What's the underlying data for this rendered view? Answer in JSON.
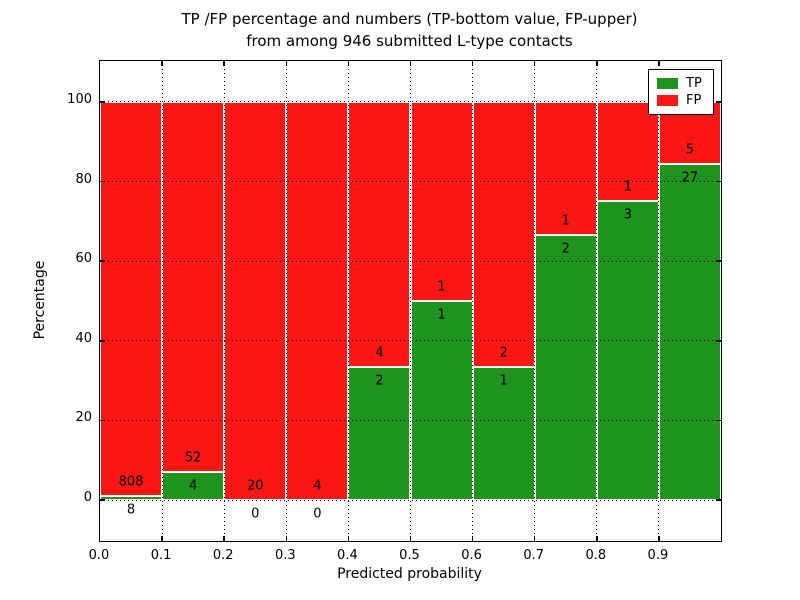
{
  "figure": {
    "title_line1": "TP /FP percentage and numbers (TP-bottom value, FP-upper)",
    "title_line2": "from among 946 submitted L-type contacts"
  },
  "chart_data": {
    "type": "bar",
    "stacked": true,
    "normalized_to_percent": true,
    "title": "TP /FP percentage and numbers (TP-bottom value, FP-upper) from among 946 submitted L-type contacts",
    "xlabel": "Predicted probability",
    "ylabel": "Percentage",
    "xlim": [
      0.0,
      1.0
    ],
    "ylim": [
      -10.3,
      110.3
    ],
    "grid": true,
    "x_tick_labels": [
      "0.0",
      "0.1",
      "0.2",
      "0.3",
      "0.4",
      "0.5",
      "0.6",
      "0.7",
      "0.8",
      "0.9"
    ],
    "x_tick_values": [
      0.0,
      0.1,
      0.2,
      0.3,
      0.4,
      0.5,
      0.6,
      0.7,
      0.8,
      0.9
    ],
    "y_tick_labels": [
      "0",
      "20",
      "40",
      "60",
      "80",
      "100"
    ],
    "y_tick_values": [
      0,
      20,
      40,
      60,
      80,
      100
    ],
    "bin_edges": [
      0.0,
      0.1,
      0.2,
      0.3,
      0.4,
      0.5,
      0.6,
      0.7,
      0.8,
      0.9,
      1.0
    ],
    "series": [
      {
        "name": "TP",
        "color": "#1e941e",
        "counts": [
          8,
          4,
          0,
          0,
          2,
          1,
          1,
          2,
          3,
          27
        ]
      },
      {
        "name": "FP",
        "color": "#fc1717",
        "counts": [
          808,
          52,
          20,
          4,
          4,
          1,
          2,
          1,
          1,
          5
        ]
      }
    ],
    "tp_percentages": [
      0.98,
      7.14,
      0.0,
      0.0,
      33.33,
      50.0,
      33.33,
      66.67,
      75.0,
      84.38
    ],
    "fp_percentages": [
      99.02,
      92.86,
      100.0,
      100.0,
      66.67,
      50.0,
      66.67,
      33.33,
      25.0,
      15.62
    ],
    "total_submitted": 946,
    "legend": {
      "position": "upper right",
      "entries": [
        {
          "label": "TP",
          "color": "#1e941e"
        },
        {
          "label": "FP",
          "color": "#fc1717"
        }
      ]
    }
  }
}
